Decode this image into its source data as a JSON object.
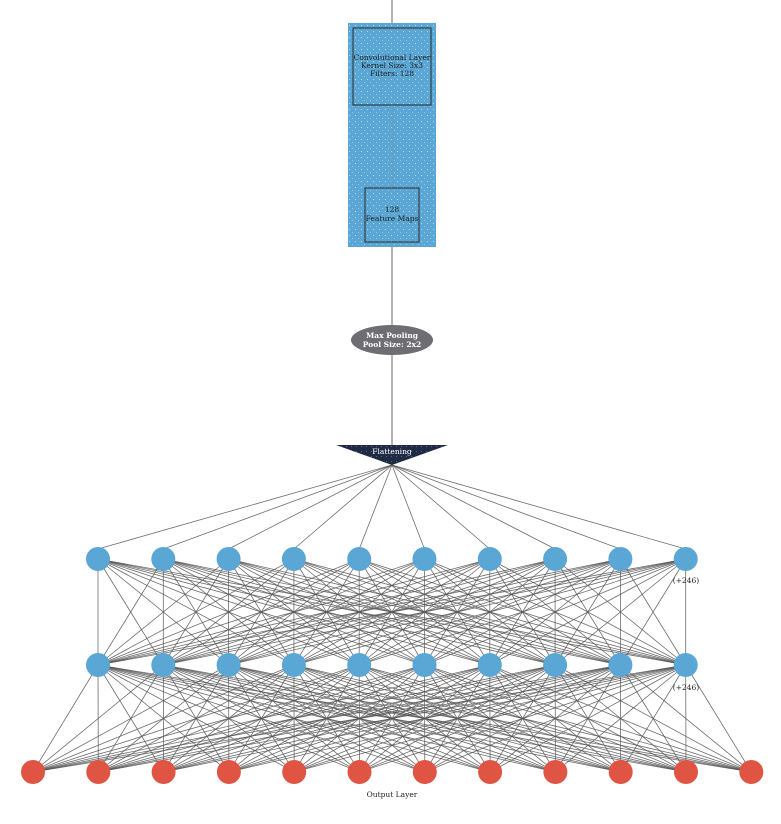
{
  "colors": {
    "conv_fill": "#5aa6d4",
    "conv_border": "#2a2a2a",
    "pool_fill": "#6e6e72",
    "flatten_fill": "#1f2a44",
    "hidden_node": "#5aa6d4",
    "output_node": "#e05443",
    "edge": "#555555"
  },
  "conv_layer": {
    "line1": "Convolutional Layer",
    "line2": "Kernel Size: 3x3",
    "line3": "Filters: 128"
  },
  "feature_maps": {
    "line1": "128",
    "line2": "Feature Maps"
  },
  "pooling": {
    "line1": "Max Pooling",
    "line2": "Pool Size: 2x2"
  },
  "flatten": {
    "label": "Flattening"
  },
  "hidden_layers": [
    {
      "visible_nodes": 10,
      "more_label": "(+246)"
    },
    {
      "visible_nodes": 10,
      "more_label": "(+246)"
    }
  ],
  "output_layer": {
    "visible_nodes": 12,
    "label": "Output Layer"
  }
}
